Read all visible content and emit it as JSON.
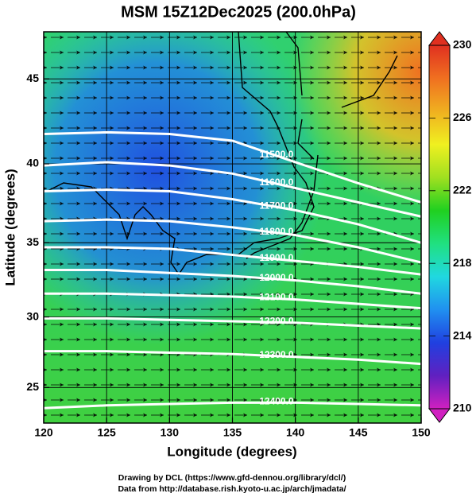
{
  "chart_data": {
    "type": "map",
    "projection": "mercator",
    "title": "MSM 15Z12Dec2025 (200.0hPa)",
    "x_label": "Longitude (degrees)",
    "y_label": "Latitude  (degrees)",
    "xlim": [
      120,
      150
    ],
    "ylim": [
      22.4,
      47.6
    ],
    "xticks": [
      120,
      125,
      130,
      135,
      140,
      145,
      150
    ],
    "yticks": [
      25,
      30,
      35,
      40,
      45
    ],
    "grid": true,
    "contour_lons": [
      120,
      125,
      130,
      135,
      140,
      145,
      150
    ],
    "contours": [
      {
        "label": "11500.0",
        "lats": [
          41.8,
          41.9,
          41.8,
          41.4,
          40.1,
          38.8,
          37.6
        ]
      },
      {
        "label": "11600.0",
        "lats": [
          39.9,
          40.1,
          39.9,
          39.4,
          38.5,
          37.6,
          36.7
        ]
      },
      {
        "label": "11700.0",
        "lats": [
          38.3,
          38.4,
          38.3,
          37.8,
          37.1,
          36.2,
          35.0
        ]
      },
      {
        "label": "11800.0",
        "lats": [
          36.4,
          36.5,
          36.4,
          36.0,
          35.5,
          34.7,
          33.7
        ]
      },
      {
        "label": "11900.0",
        "lats": [
          34.7,
          34.7,
          34.6,
          34.2,
          33.8,
          33.4,
          32.9
        ]
      },
      {
        "label": "12000.0",
        "lats": [
          33.2,
          33.2,
          33.0,
          32.8,
          32.5,
          32.1,
          31.6
        ]
      },
      {
        "label": "12100.0",
        "lats": [
          31.6,
          31.6,
          31.5,
          31.4,
          31.2,
          30.9,
          30.6
        ]
      },
      {
        "label": "12200.0",
        "lats": [
          29.9,
          29.9,
          29.8,
          29.7,
          29.6,
          29.4,
          29.2
        ]
      },
      {
        "label": "12300.0",
        "lats": [
          27.6,
          27.6,
          27.5,
          27.4,
          27.2,
          27.0,
          26.7
        ]
      },
      {
        "label": "12400.0",
        "lats": [
          23.5,
          23.7,
          23.8,
          23.9,
          23.9,
          23.8,
          23.7
        ]
      }
    ],
    "colorbar": {
      "lim": [
        210,
        230
      ],
      "ticks": [
        210,
        214,
        218,
        222,
        226,
        230
      ],
      "colors": [
        "#d020c0",
        "#6020c0",
        "#2040e0",
        "#2090f0",
        "#20d8e0",
        "#20e080",
        "#20d020",
        "#a0e020",
        "#f0f020",
        "#f0b020",
        "#f07020",
        "#e03020"
      ]
    },
    "credits": [
      "Drawing by DCL (https://www.gfd-dennou.org/library/dcl/)",
      "Data from http://database.rish.kyoto-u.ac.jp/arch/jmadata/"
    ]
  }
}
